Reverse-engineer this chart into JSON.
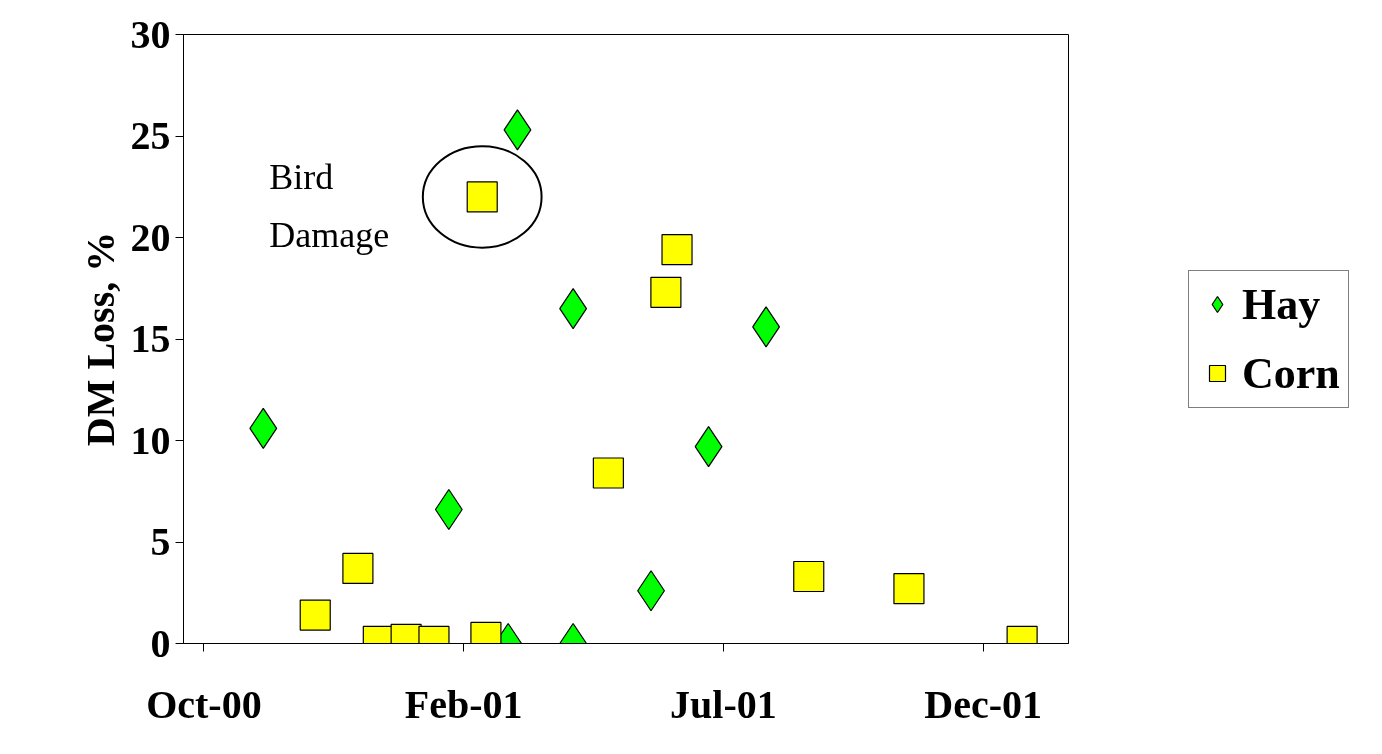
{
  "chart_data": {
    "type": "scatter",
    "ylabel": "DM Loss, %",
    "xlim": [
      "2000-09-29",
      "2002-01-19"
    ],
    "xticks": [
      {
        "value": "2000-10-10",
        "label": "Oct-00"
      },
      {
        "value": "2001-02-27",
        "label": "Feb-01"
      },
      {
        "value": "2001-07-17",
        "label": "Jul-01"
      },
      {
        "value": "2001-12-04",
        "label": "Dec-01"
      }
    ],
    "ylim": [
      0,
      30
    ],
    "yticks": [
      0,
      5,
      10,
      15,
      20,
      25,
      30
    ],
    "grid": false,
    "legend": "right",
    "annotations": [
      {
        "text": "Bird Damage",
        "x": "2001-03-09",
        "y": 22
      }
    ],
    "series": [
      {
        "name": "Hay",
        "color": "#00ff00",
        "marker": "diamond",
        "x": [
          "2000-11-11",
          "2001-02-19",
          "2001-03-28",
          "2001-03-23",
          "2001-04-27",
          "2001-04-27",
          "2001-06-08",
          "2001-07-09",
          "2001-08-09"
        ],
        "values": [
          10.6,
          6.6,
          25.3,
          0,
          16.5,
          0,
          2.6,
          9.7,
          15.6
        ]
      },
      {
        "name": "Corn",
        "color": "#ffff00",
        "marker": "square",
        "x": [
          "2000-12-09",
          "2001-01-01",
          "2001-01-12",
          "2001-01-27",
          "2001-02-11",
          "2001-03-09",
          "2001-03-11",
          "2001-05-16",
          "2001-06-16",
          "2001-06-22",
          "2001-09-01",
          "2001-10-25",
          "2001-12-25"
        ],
        "values": [
          1.4,
          3.7,
          0.1,
          0.2,
          0.1,
          22.0,
          0.3,
          8.4,
          17.3,
          19.4,
          3.3,
          2.7,
          0.1
        ]
      }
    ]
  }
}
